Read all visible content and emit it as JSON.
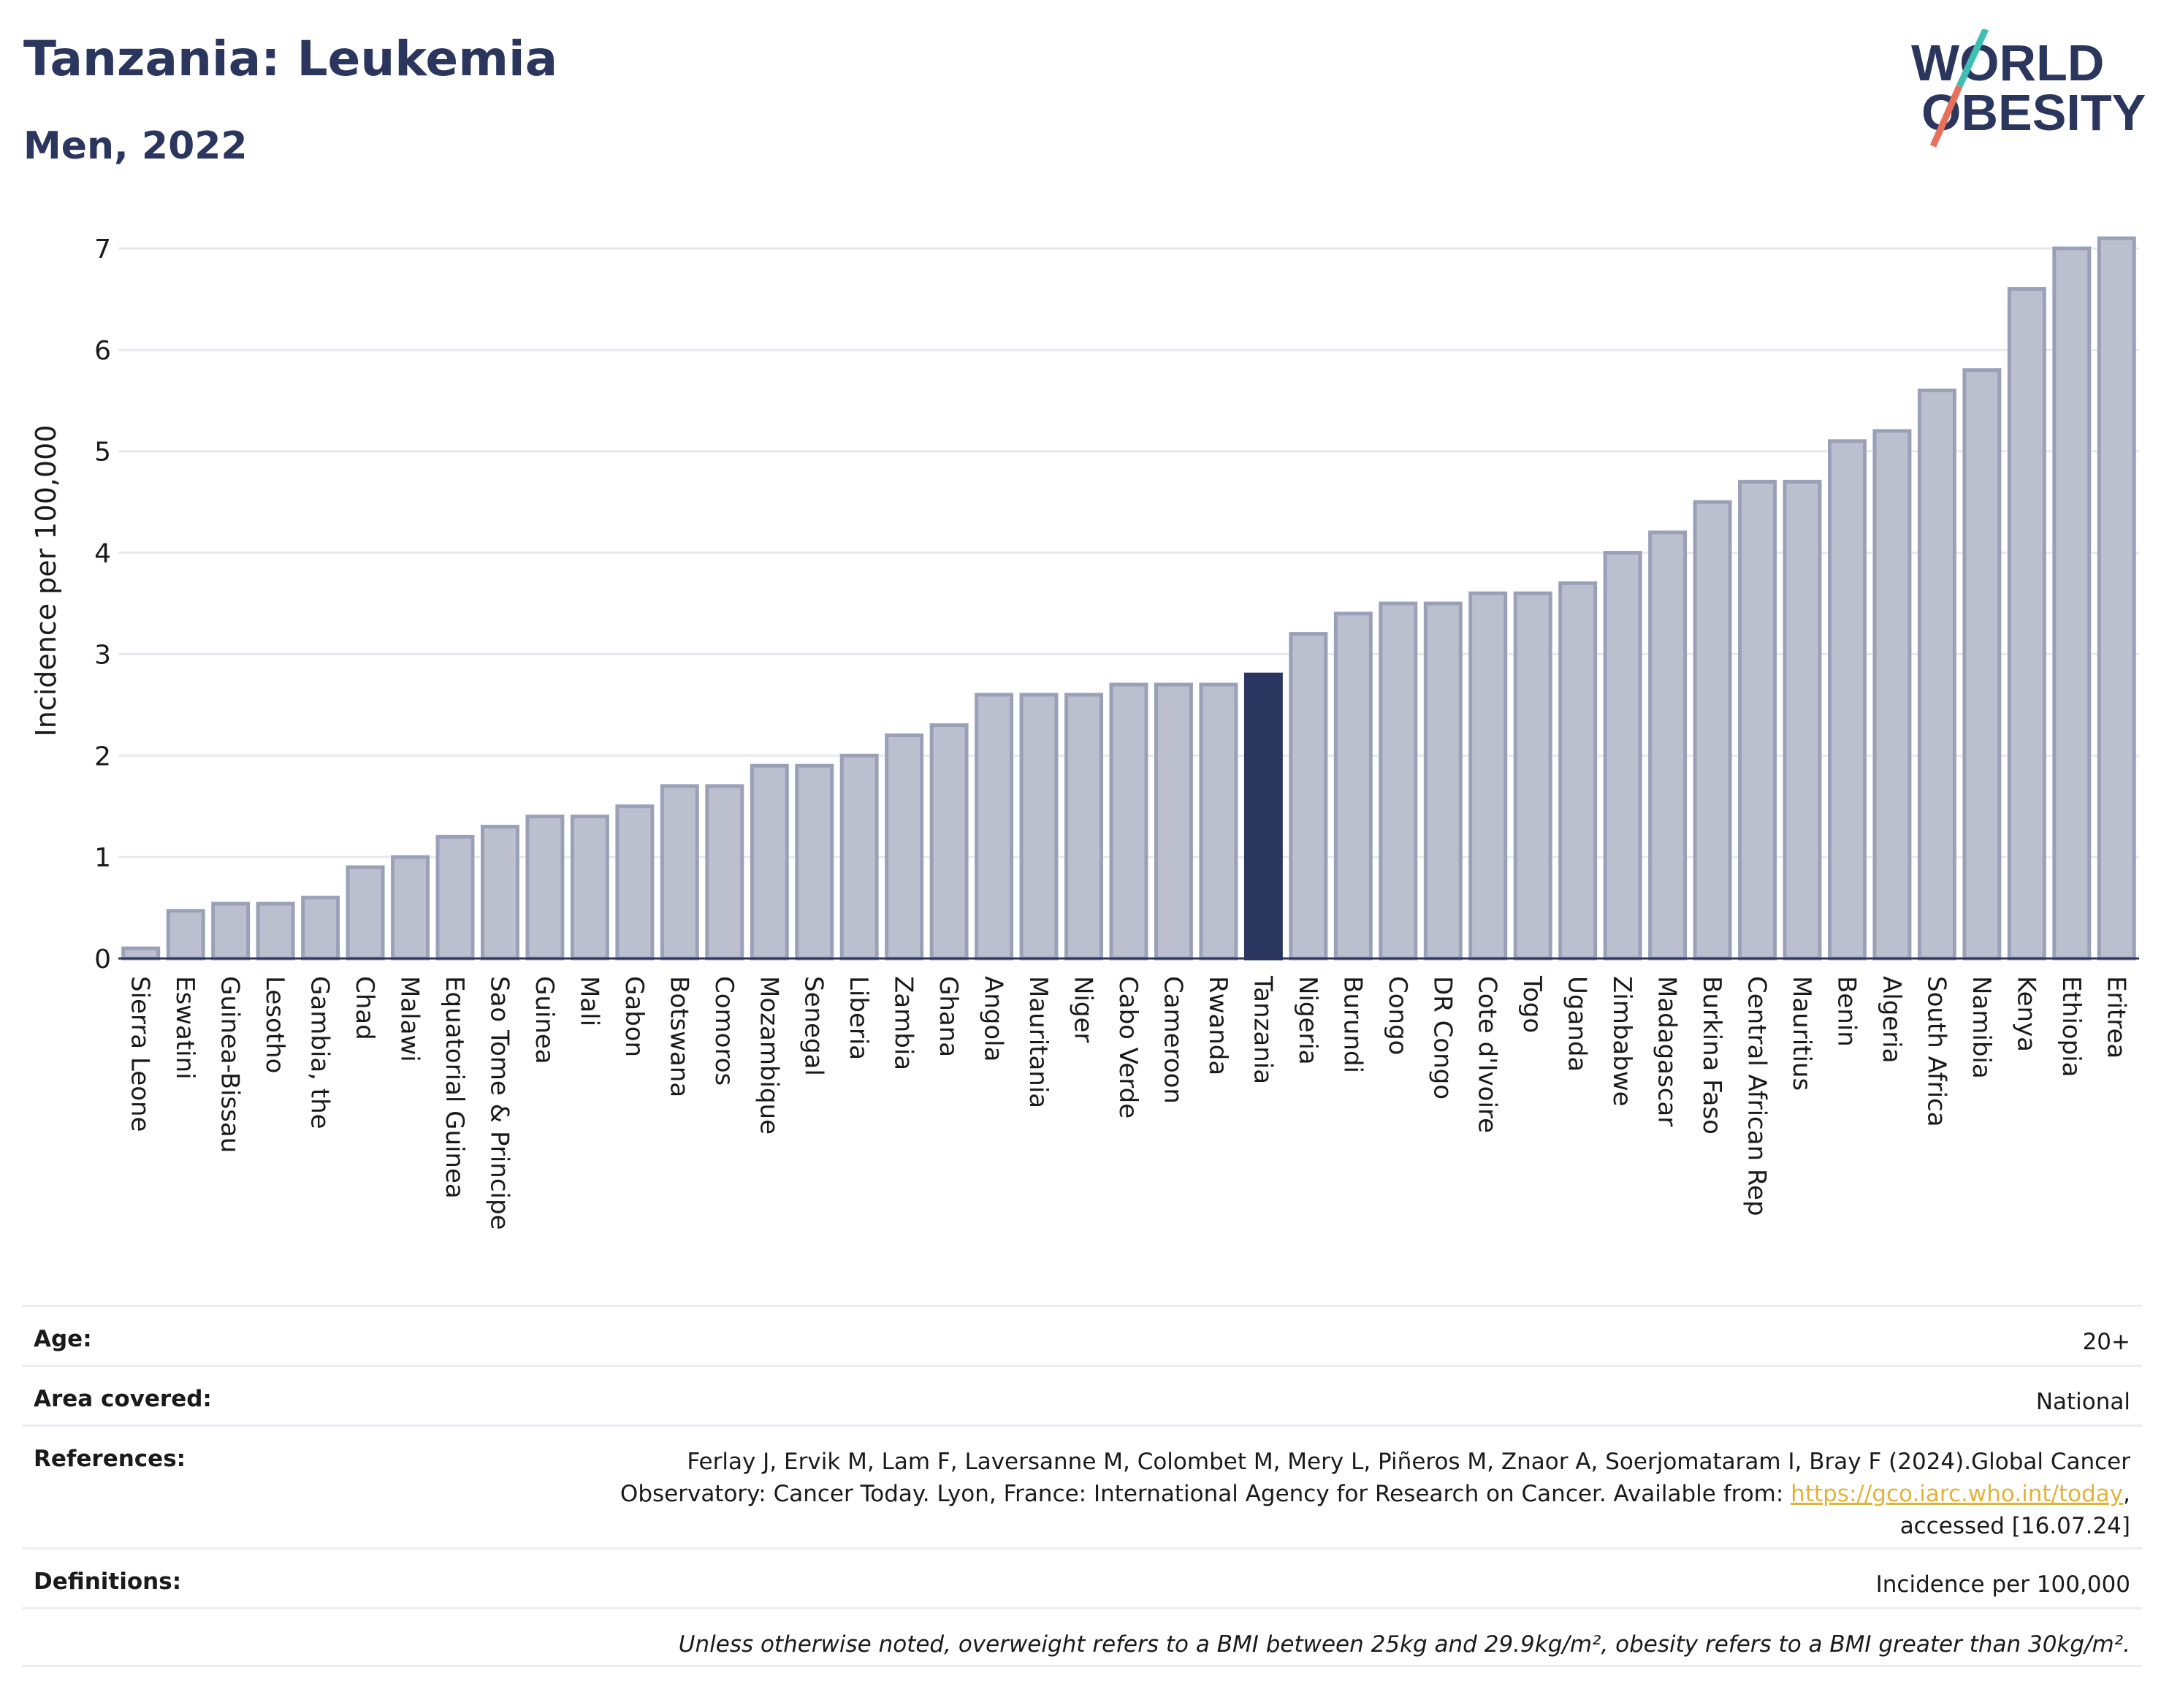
{
  "header": {
    "title": "Tanzania: Leukemia",
    "subtitle": "Men, 2022",
    "logo_text": [
      "WORLD",
      "OBESITY"
    ]
  },
  "colors": {
    "bar": "#bcc0ce",
    "bar_stroke": "#9aa0b8",
    "highlight": "#2b365f",
    "title": "#2b365f",
    "grid": "#e8e9ee",
    "logo_slash_teal": "#3fbfb4",
    "logo_slash_red": "#e8705a",
    "link": "#e0b43b"
  },
  "chart_data": {
    "type": "bar",
    "ylabel": "Incidence per 100,000",
    "ylim": [
      0,
      7.2
    ],
    "yticks": [
      0,
      1,
      2,
      3,
      4,
      5,
      6,
      7
    ],
    "grid": true,
    "highlight": "Tanzania",
    "categories": [
      "Sierra Leone",
      "Eswatini",
      "Guinea-Bissau",
      "Lesotho",
      "Gambia, the",
      "Chad",
      "Malawi",
      "Equatorial Guinea",
      "Sao Tome & Principe",
      "Guinea",
      "Mali",
      "Gabon",
      "Botswana",
      "Comoros",
      "Mozambique",
      "Senegal",
      "Liberia",
      "Zambia",
      "Ghana",
      "Angola",
      "Mauritania",
      "Niger",
      "Cabo Verde",
      "Cameroon",
      "Rwanda",
      "Tanzania",
      "Nigeria",
      "Burundi",
      "Congo",
      "DR Congo",
      "Cote d'Ivoire",
      "Togo",
      "Uganda",
      "Zimbabwe",
      "Madagascar",
      "Burkina Faso",
      "Central African Rep",
      "Mauritius",
      "Benin",
      "Algeria",
      "South Africa",
      "Namibia",
      "Kenya",
      "Ethiopia",
      "Eritrea"
    ],
    "values": [
      0.1,
      0.47,
      0.54,
      0.54,
      0.6,
      0.9,
      1.0,
      1.2,
      1.3,
      1.4,
      1.4,
      1.5,
      1.7,
      1.7,
      1.9,
      1.9,
      2.0,
      2.2,
      2.3,
      2.6,
      2.6,
      2.6,
      2.7,
      2.7,
      2.7,
      2.8,
      3.2,
      3.4,
      3.5,
      3.5,
      3.6,
      3.6,
      3.7,
      4.0,
      4.2,
      4.5,
      4.7,
      4.7,
      5.1,
      5.2,
      5.6,
      5.8,
      6.6,
      7.0,
      7.1
    ]
  },
  "info": {
    "age": {
      "label": "Age:",
      "value": "20+"
    },
    "area": {
      "label": "Area covered:",
      "value": "National"
    },
    "references": {
      "label": "References:",
      "line1": "Ferlay J, Ervik M, Lam F, Laversanne M, Colombet M, Mery L, Piñeros M, Znaor A, Soerjomataram I, Bray F (2024).Global Cancer",
      "line2_prefix": "Observatory: Cancer Today. Lyon, France: International Agency for Research on Cancer. Available from: ",
      "link": "https://gco.iarc.who.int/today",
      "line2_suffix": ",",
      "line3": "accessed [16.07.24]"
    },
    "definitions": {
      "label": "Definitions:",
      "value": "Incidence per 100,000"
    },
    "note": "Unless otherwise noted, overweight refers to a BMI between 25kg and 29.9kg/m², obesity refers to a BMI greater than 30kg/m²."
  }
}
